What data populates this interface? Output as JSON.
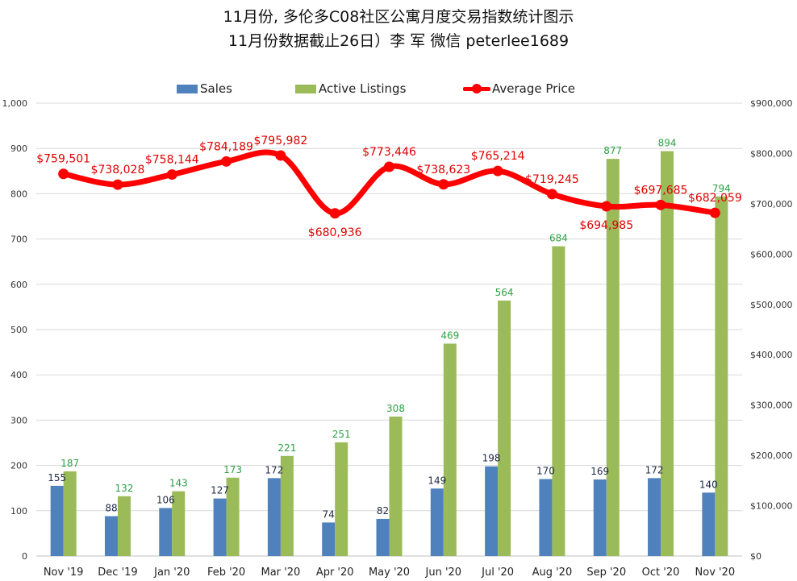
{
  "title": {
    "line1": "11月份, 多伦多C08社区公寓月度交易指数统计图示",
    "line2": "11月份数据截止26日）李 军  微信  peterlee1689"
  },
  "legend": {
    "sales": "Sales",
    "active": "Active Listings",
    "price": "Average Price"
  },
  "colors": {
    "sales": "#4f81bd",
    "active": "#9bbb59",
    "price": "#ff0000",
    "sales_label": "#1f2a44",
    "active_label": "#2ea043",
    "price_label": "#e00000",
    "grid": "#d9d9d9"
  },
  "chart_data": {
    "type": "bar",
    "categories": [
      "Nov '19",
      "Dec '19",
      "Jan '20",
      "Feb '20",
      "Mar '20",
      "Apr '20",
      "May '20",
      "Jun '20",
      "Jul '20",
      "Aug '20",
      "Sep '20",
      "Oct '20",
      "Nov '20"
    ],
    "series": [
      {
        "name": "Sales",
        "type": "bar",
        "axis": "left",
        "values": [
          155,
          88,
          106,
          127,
          172,
          74,
          82,
          149,
          198,
          170,
          169,
          172,
          140
        ],
        "labels": [
          "155",
          "88",
          "106",
          "127",
          "172",
          "74",
          "82",
          "149",
          "198",
          "170",
          "169",
          "172",
          "140"
        ]
      },
      {
        "name": "Active Listings",
        "type": "bar",
        "axis": "left",
        "values": [
          187,
          132,
          143,
          173,
          221,
          251,
          308,
          469,
          564,
          684,
          877,
          894,
          794
        ],
        "labels": [
          "187",
          "132",
          "143",
          "173",
          "221",
          "251",
          "308",
          "469",
          "564",
          "684",
          "877",
          "894",
          "794"
        ]
      },
      {
        "name": "Average Price",
        "type": "line",
        "axis": "right",
        "smooth": true,
        "values": [
          759501,
          738028,
          758144,
          784189,
          795982,
          680936,
          773446,
          738623,
          765214,
          719245,
          694985,
          697685,
          682059
        ],
        "labels": [
          "$759,501",
          "$738,028",
          "$758,144",
          "$784,189",
          "$795,982",
          "$680,936",
          "$773,446",
          "$738,623",
          "$765,214",
          "$719,245",
          "$694,985",
          "$697,685",
          "$682,059"
        ]
      }
    ],
    "y_left": {
      "range": [
        0,
        1000
      ],
      "ticks": [
        "0",
        "100",
        "200",
        "300",
        "400",
        "500",
        "600",
        "700",
        "800",
        "900",
        "1,000"
      ]
    },
    "y_right": {
      "range": [
        0,
        900000
      ],
      "ticks": [
        "$0",
        "$100,000",
        "$200,000",
        "$300,000",
        "$400,000",
        "$500,000",
        "$600,000",
        "$700,000",
        "$800,000",
        "$900,000"
      ]
    },
    "grid": true,
    "legend_position": "top"
  }
}
